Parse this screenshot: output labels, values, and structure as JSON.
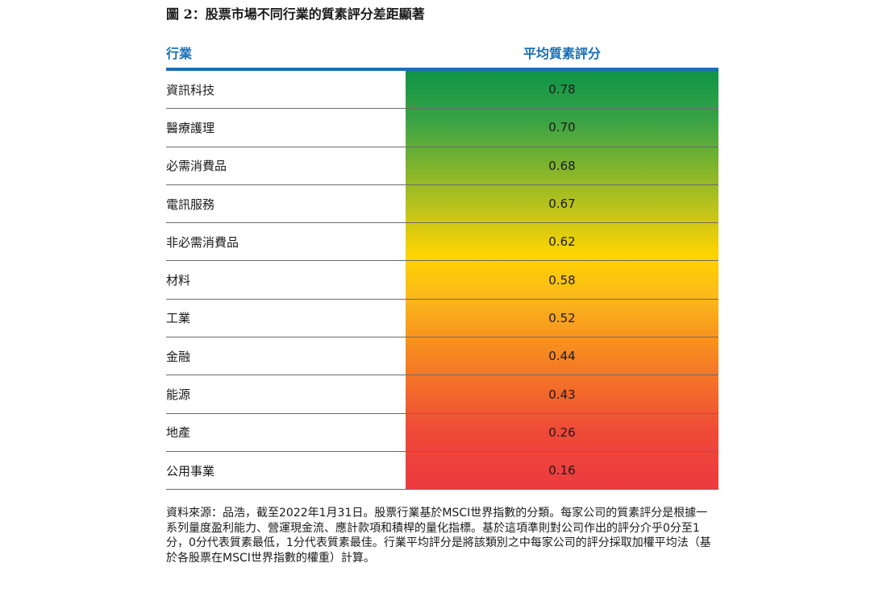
{
  "title": "圖 2：股票市場不同行業的質素評分差距顯著",
  "table": {
    "header_sector": "行業",
    "header_score": "平均質素評分"
  },
  "chart_data": {
    "type": "table",
    "title": "圖 2：股票市場不同行業的質素評分差距顯著",
    "columns": [
      "行業",
      "平均質素評分"
    ],
    "categories": [
      "資訊科技",
      "醫療護理",
      "必需消費品",
      "電訊服務",
      "非必需消費品",
      "材料",
      "工業",
      "金融",
      "能源",
      "地產",
      "公用事業"
    ],
    "values": [
      "0.78",
      "0.70",
      "0.68",
      "0.67",
      "0.62",
      "0.58",
      "0.52",
      "0.44",
      "0.43",
      "0.26",
      "0.16"
    ],
    "colors": {
      "high": "#0e9446",
      "mid": "#ffd400",
      "low": "#ec3a40",
      "header_accent": "#1a6fb5"
    }
  },
  "note": "資料來源：品浩，截至2022年1月31日。股票行業基於MSCI世界指數的分類。每家公司的質素評分是根據一系列量度盈利能力、營運現金流、應計款項和積桿的量化指標。基於這項準則對公司作出的評分介乎0分至1分，0分代表質素最低，1分代表質素最佳。行業平均評分是將該類別之中每家公司的評分採取加權平均法（基於各股票在MSCI世界指數的權重）計算。"
}
